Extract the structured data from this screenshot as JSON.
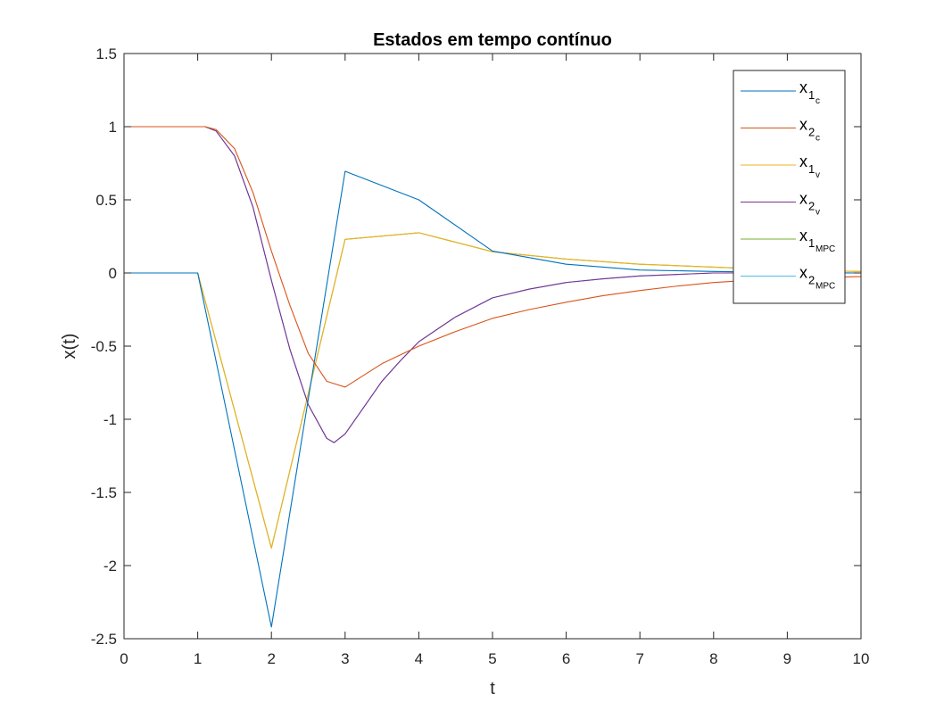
{
  "chart_data": {
    "type": "line",
    "title": "Estados em tempo contínuo",
    "xlabel": "t",
    "ylabel": "x(t)",
    "xlim": [
      0,
      10
    ],
    "ylim": [
      -2.5,
      1.5
    ],
    "xticks": [
      "0",
      "1",
      "2",
      "3",
      "4",
      "5",
      "6",
      "7",
      "8",
      "9",
      "10"
    ],
    "yticks": [
      "-2.5",
      "-2",
      "-1.5",
      "-1",
      "-0.5",
      "0",
      "0.5",
      "1",
      "1.5"
    ],
    "grid": false,
    "legend_position": "top-right",
    "series": [
      {
        "name": "x1c",
        "legend": {
          "base": "x",
          "sub": "1",
          "subsub": "c"
        },
        "color": "#0072BD",
        "points": [
          [
            0,
            0
          ],
          [
            1,
            0
          ],
          [
            2,
            -2.42
          ],
          [
            3,
            0.695
          ],
          [
            4,
            0.5
          ],
          [
            5,
            0.15
          ],
          [
            6,
            0.06
          ],
          [
            7,
            0.02
          ],
          [
            8,
            0.01
          ],
          [
            9,
            0.003
          ],
          [
            10,
            0.0
          ]
        ]
      },
      {
        "name": "x2c",
        "legend": {
          "base": "x",
          "sub": "2",
          "subsub": "c"
        },
        "color": "#D95319",
        "points": [
          [
            0,
            1
          ],
          [
            1,
            1
          ],
          [
            1.1,
            1.0
          ],
          [
            1.25,
            0.98
          ],
          [
            1.5,
            0.85
          ],
          [
            1.75,
            0.55
          ],
          [
            2,
            0.15
          ],
          [
            2.25,
            -0.22
          ],
          [
            2.5,
            -0.55
          ],
          [
            2.75,
            -0.74
          ],
          [
            3,
            -0.78
          ],
          [
            3.5,
            -0.62
          ],
          [
            4,
            -0.5
          ],
          [
            4.5,
            -0.4
          ],
          [
            5,
            -0.31
          ],
          [
            5.5,
            -0.25
          ],
          [
            6,
            -0.2
          ],
          [
            6.5,
            -0.155
          ],
          [
            7,
            -0.12
          ],
          [
            7.5,
            -0.09
          ],
          [
            8,
            -0.065
          ],
          [
            8.5,
            -0.05
          ],
          [
            9,
            -0.038
          ],
          [
            9.5,
            -0.03
          ],
          [
            10,
            -0.025
          ]
        ]
      },
      {
        "name": "x1v",
        "legend": {
          "base": "x",
          "sub": "1",
          "subsub": "v"
        },
        "color": "#EDB120",
        "points": [
          [
            0,
            0
          ],
          [
            1,
            0
          ],
          [
            2,
            -1.88
          ],
          [
            3,
            0.23
          ],
          [
            4,
            0.275
          ],
          [
            5,
            0.145
          ],
          [
            6,
            0.095
          ],
          [
            7,
            0.06
          ],
          [
            8,
            0.04
          ],
          [
            9,
            0.02
          ],
          [
            10,
            0.01
          ]
        ]
      },
      {
        "name": "x2v",
        "legend": {
          "base": "x",
          "sub": "2",
          "subsub": "v"
        },
        "color": "#7E2F8E",
        "points": [
          [
            0,
            1
          ],
          [
            1,
            1
          ],
          [
            1.1,
            1.0
          ],
          [
            1.25,
            0.97
          ],
          [
            1.5,
            0.8
          ],
          [
            1.75,
            0.45
          ],
          [
            2,
            -0.05
          ],
          [
            2.25,
            -0.52
          ],
          [
            2.5,
            -0.9
          ],
          [
            2.75,
            -1.13
          ],
          [
            2.85,
            -1.16
          ],
          [
            3,
            -1.1
          ],
          [
            3.25,
            -0.92
          ],
          [
            3.5,
            -0.74
          ],
          [
            3.75,
            -0.6
          ],
          [
            4,
            -0.47
          ],
          [
            4.5,
            -0.3
          ],
          [
            5,
            -0.17
          ],
          [
            5.5,
            -0.11
          ],
          [
            6,
            -0.065
          ],
          [
            6.5,
            -0.04
          ],
          [
            7,
            -0.02
          ],
          [
            7.5,
            -0.01
          ],
          [
            8,
            0.0
          ],
          [
            9,
            0.0
          ],
          [
            10,
            0.0
          ]
        ]
      },
      {
        "name": "x1MPC",
        "legend": {
          "base": "x",
          "sub": "1",
          "subsub": "MPC"
        },
        "color": "#77AC30",
        "points": [
          [
            0,
            0
          ],
          [
            1,
            0
          ],
          [
            2,
            -1.88
          ],
          [
            3,
            0.23
          ],
          [
            4,
            0.275
          ],
          [
            5,
            0.145
          ],
          [
            6,
            0.095
          ],
          [
            7,
            0.06
          ],
          [
            8,
            0.04
          ],
          [
            9,
            0.02
          ],
          [
            10,
            0.01
          ]
        ]
      },
      {
        "name": "x2MPC",
        "legend": {
          "base": "x",
          "sub": "2",
          "subsub": "MPC"
        },
        "color": "#4DBEEE",
        "points": [
          [
            0,
            1
          ],
          [
            1,
            1
          ],
          [
            1.1,
            1.0
          ],
          [
            1.25,
            0.97
          ],
          [
            1.5,
            0.8
          ],
          [
            1.75,
            0.45
          ],
          [
            2,
            -0.05
          ],
          [
            2.25,
            -0.52
          ],
          [
            2.5,
            -0.9
          ],
          [
            2.75,
            -1.13
          ],
          [
            2.85,
            -1.16
          ],
          [
            3,
            -1.1
          ],
          [
            3.25,
            -0.92
          ],
          [
            3.5,
            -0.74
          ],
          [
            3.75,
            -0.6
          ],
          [
            4,
            -0.47
          ],
          [
            4.5,
            -0.3
          ],
          [
            5,
            -0.17
          ],
          [
            5.5,
            -0.11
          ],
          [
            6,
            -0.065
          ],
          [
            6.5,
            -0.04
          ],
          [
            7,
            -0.02
          ],
          [
            7.5,
            -0.01
          ],
          [
            8,
            0.0
          ],
          [
            9,
            0.0
          ],
          [
            10,
            0.0
          ]
        ]
      }
    ]
  },
  "draw_order": [
    "x1MPC",
    "x2MPC",
    "x1v",
    "x2v",
    "x1c",
    "x2c"
  ]
}
